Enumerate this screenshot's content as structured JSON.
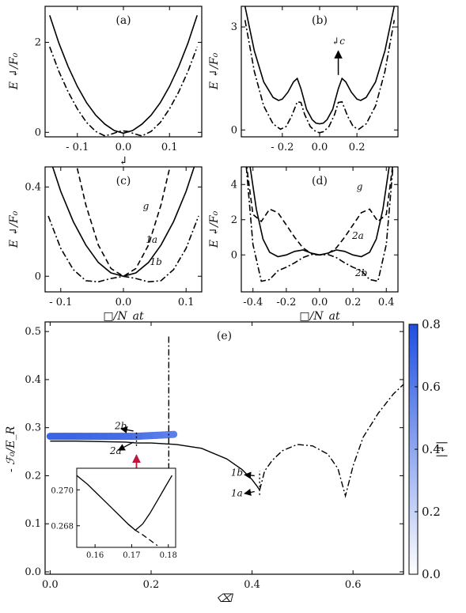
{
  "chart_data": [
    {
      "id": "a",
      "type": "line",
      "panel_label": "(a)",
      "ylabel": "E ↲/F₀",
      "xlabel": "↲",
      "xlim": [
        -0.17,
        0.17
      ],
      "ylim": [
        -0.1,
        2.8
      ],
      "xticks": [
        -0.1,
        0.0,
        0.1
      ],
      "xtick_labels": [
        "- 0.1",
        "0.0",
        "0.1"
      ],
      "yticks": [
        0,
        2
      ],
      "ytick_labels": [
        "0",
        "2"
      ],
      "series": [
        {
          "style": "solid",
          "x": [
            -0.16,
            -0.14,
            -0.12,
            -0.1,
            -0.08,
            -0.06,
            -0.04,
            -0.02,
            0,
            0.02,
            0.04,
            0.06,
            0.08,
            0.1,
            0.12,
            0.14,
            0.16
          ],
          "y": [
            2.6,
            1.98,
            1.46,
            1.02,
            0.66,
            0.38,
            0.18,
            0.04,
            -0.02,
            0.04,
            0.18,
            0.38,
            0.66,
            1.02,
            1.46,
            1.98,
            2.6
          ]
        },
        {
          "style": "dashdot",
          "x": [
            -0.16,
            -0.14,
            -0.12,
            -0.1,
            -0.08,
            -0.06,
            -0.04,
            -0.02,
            -0.01,
            0,
            0.01,
            0.02,
            0.04,
            0.06,
            0.08,
            0.1,
            0.12,
            0.14,
            0.16
          ],
          "y": [
            1.9,
            1.35,
            0.9,
            0.52,
            0.22,
            0.02,
            -0.08,
            -0.02,
            0.02,
            0.03,
            0.02,
            -0.02,
            -0.08,
            0.02,
            0.22,
            0.52,
            0.9,
            1.35,
            1.9
          ]
        }
      ]
    },
    {
      "id": "b",
      "type": "line",
      "panel_label": "(b)",
      "ylabel": "E ↲/F₀",
      "xlabel": "",
      "xlim": [
        -0.42,
        0.42
      ],
      "ylim": [
        -0.2,
        3.6
      ],
      "xticks": [
        -0.2,
        0.0,
        0.2
      ],
      "xtick_labels": [
        "- 0.2",
        "0.0",
        "0.2"
      ],
      "yticks": [
        0,
        3
      ],
      "ytick_labels": [
        "0",
        "3"
      ],
      "annotations": [
        {
          "text": "↲c",
          "x": 0.1,
          "y": 2.5
        }
      ],
      "series": [
        {
          "style": "solid",
          "x": [
            -0.4,
            -0.35,
            -0.3,
            -0.25,
            -0.22,
            -0.2,
            -0.17,
            -0.14,
            -0.12,
            -0.1,
            -0.07,
            -0.04,
            -0.02,
            0,
            0.02,
            0.04,
            0.07,
            0.1,
            0.12,
            0.14,
            0.17,
            0.2,
            0.22,
            0.25,
            0.3,
            0.35,
            0.4
          ],
          "y": [
            3.6,
            2.3,
            1.4,
            0.95,
            0.86,
            0.9,
            1.1,
            1.4,
            1.5,
            1.2,
            0.6,
            0.3,
            0.2,
            0.18,
            0.2,
            0.3,
            0.6,
            1.2,
            1.5,
            1.4,
            1.1,
            0.9,
            0.86,
            0.95,
            1.4,
            2.3,
            3.6
          ]
        },
        {
          "style": "dashdot",
          "x": [
            -0.4,
            -0.35,
            -0.3,
            -0.25,
            -0.21,
            -0.18,
            -0.15,
            -0.12,
            -0.1,
            -0.08,
            -0.05,
            -0.02,
            0,
            0.02,
            0.05,
            0.08,
            0.1,
            0.12,
            0.15,
            0.18,
            0.21,
            0.25,
            0.3,
            0.35,
            0.4
          ],
          "y": [
            3.2,
            1.7,
            0.7,
            0.18,
            0.02,
            0.1,
            0.4,
            0.82,
            0.8,
            0.45,
            0.1,
            -0.05,
            -0.08,
            -0.05,
            0.1,
            0.45,
            0.8,
            0.82,
            0.4,
            0.1,
            0.02,
            0.18,
            0.7,
            1.7,
            3.2
          ]
        }
      ]
    },
    {
      "id": "c",
      "type": "line",
      "panel_label": "(c)",
      "ylabel": "E ↲/F₀",
      "xlabel": "□/N_at",
      "xlim": [
        -0.125,
        0.125
      ],
      "ylim": [
        -0.07,
        0.49
      ],
      "xticks": [
        -0.1,
        0.0,
        0.1
      ],
      "xtick_labels": [
        "- 0.1",
        "0.0",
        "0.1"
      ],
      "yticks": [
        0,
        0.4
      ],
      "ytick_labels": [
        "0",
        "0.4"
      ],
      "annotations": [
        {
          "text": "g",
          "x": 0.036,
          "y": 0.3
        },
        {
          "text": "1a",
          "x": 0.045,
          "y": 0.15
        },
        {
          "text": "1b",
          "x": 0.052,
          "y": 0.05
        }
      ],
      "series": [
        {
          "name": "g",
          "style": "dashed",
          "x": [
            -0.08,
            -0.06,
            -0.04,
            -0.02,
            0,
            0.02,
            0.04,
            0.06,
            0.08
          ],
          "y": [
            0.56,
            0.32,
            0.14,
            0.035,
            0.0,
            0.035,
            0.14,
            0.32,
            0.56
          ]
        },
        {
          "name": "1a",
          "style": "solid",
          "x": [
            -0.12,
            -0.1,
            -0.08,
            -0.06,
            -0.04,
            -0.02,
            0,
            0.02,
            0.04,
            0.06,
            0.08,
            0.1,
            0.12
          ],
          "y": [
            0.55,
            0.38,
            0.245,
            0.14,
            0.062,
            0.015,
            0.0,
            0.015,
            0.062,
            0.14,
            0.245,
            0.38,
            0.55
          ]
        },
        {
          "name": "1b",
          "style": "dashdot",
          "x": [
            -0.12,
            -0.1,
            -0.08,
            -0.06,
            -0.04,
            -0.02,
            0,
            0.02,
            0.04,
            0.06,
            0.08,
            0.1,
            0.12
          ],
          "y": [
            0.27,
            0.125,
            0.03,
            -0.02,
            -0.025,
            -0.01,
            0.0,
            -0.01,
            -0.025,
            -0.02,
            0.03,
            0.125,
            0.27
          ]
        }
      ]
    },
    {
      "id": "d",
      "type": "line",
      "panel_label": "(d)",
      "ylabel": "E ↲/F₀",
      "xlabel": "□/N_at",
      "xlim": [
        -0.47,
        0.47
      ],
      "ylim": [
        -2.1,
        5.0
      ],
      "xticks": [
        -0.4,
        -0.2,
        0.0,
        0.2,
        0.4
      ],
      "xtick_labels": [
        "-0.4",
        "-0.2",
        "0.0",
        "0.2",
        "0.4"
      ],
      "yticks": [
        0,
        2,
        4
      ],
      "ytick_labels": [
        "0",
        "2",
        "4"
      ],
      "annotations": [
        {
          "text": "g",
          "x": 0.24,
          "y": 3.7
        },
        {
          "text": "2a",
          "x": 0.23,
          "y": 0.9
        },
        {
          "text": "2b",
          "x": 0.25,
          "y": -1.2
        }
      ],
      "series": [
        {
          "name": "g",
          "style": "dashed",
          "x": [
            -0.44,
            -0.4,
            -0.35,
            -0.3,
            -0.25,
            -0.2,
            -0.15,
            -0.1,
            -0.05,
            0,
            0.05,
            0.1,
            0.15,
            0.2,
            0.25,
            0.3,
            0.35,
            0.4,
            0.44
          ],
          "y": [
            5.2,
            2.3,
            1.9,
            2.6,
            2.4,
            1.7,
            1.0,
            0.4,
            0.08,
            0.0,
            0.08,
            0.4,
            1.0,
            1.7,
            2.4,
            2.6,
            1.9,
            2.3,
            5.2
          ]
        },
        {
          "name": "2a",
          "style": "solid",
          "x": [
            -0.42,
            -0.38,
            -0.34,
            -0.3,
            -0.25,
            -0.2,
            -0.15,
            -0.1,
            -0.05,
            0,
            0.05,
            0.1,
            0.15,
            0.2,
            0.25,
            0.3,
            0.34,
            0.38,
            0.42
          ],
          "y": [
            5.2,
            2.6,
            0.9,
            0.15,
            -0.1,
            0.0,
            0.2,
            0.28,
            0.1,
            0.0,
            0.1,
            0.28,
            0.2,
            0.0,
            -0.1,
            0.15,
            0.9,
            2.6,
            5.2
          ]
        },
        {
          "name": "2b",
          "style": "dashdot",
          "x": [
            -0.44,
            -0.4,
            -0.35,
            -0.3,
            -0.25,
            -0.2,
            -0.15,
            -0.1,
            -0.05,
            0,
            0.05,
            0.1,
            0.15,
            0.2,
            0.25,
            0.3,
            0.35,
            0.4,
            0.44
          ],
          "y": [
            5.0,
            0.6,
            -1.5,
            -1.4,
            -0.9,
            -0.7,
            -0.45,
            -0.15,
            0.02,
            0.0,
            0.02,
            -0.15,
            -0.45,
            -0.7,
            -0.9,
            -1.4,
            -1.5,
            0.6,
            5.0
          ]
        }
      ]
    },
    {
      "id": "e",
      "type": "line",
      "panel_label": "(e)",
      "ylabel": "- ℱ₀/E_R",
      "xlabel": "⌫",
      "xlim": [
        -0.01,
        0.7
      ],
      "ylim": [
        -0.005,
        0.52
      ],
      "xticks": [
        0.0,
        0.2,
        0.4,
        0.6
      ],
      "xtick_labels": [
        "0.0",
        "0.2",
        "0.4",
        "0.6"
      ],
      "yticks": [
        0.0,
        0.1,
        0.2,
        0.3,
        0.4,
        0.5
      ],
      "ytick_labels": [
        "0.0",
        "0.1",
        "0.2",
        "0.3",
        "0.4",
        "0.5"
      ],
      "colorbar": {
        "label": "|↲|",
        "min": 0.0,
        "max": 0.8,
        "ticks": [
          "0.0",
          "0.2",
          "0.4",
          "0.6",
          "0.8"
        ],
        "color_low": "#ffffff",
        "color_high": "#1f4fe0"
      },
      "annotations": [
        {
          "text": "2b",
          "x": 0.14,
          "y": 0.297
        },
        {
          "text": "2a",
          "x": 0.13,
          "y": 0.245
        },
        {
          "text": "1b",
          "x": 0.37,
          "y": 0.2
        },
        {
          "text": "1a",
          "x": 0.37,
          "y": 0.157
        }
      ],
      "vertical_lines": [
        {
          "x": 0.235,
          "style": "dashdot",
          "y0": 0.213,
          "y1": 0.49
        },
        {
          "x": 0.171,
          "style": "dotted",
          "y0": 0.262,
          "y1": 0.295
        },
        {
          "x": 0.415,
          "style": "dotted",
          "y0": 0.16,
          "y1": 0.21
        }
      ],
      "series": [
        {
          "name": "2b",
          "style": "thick-colored",
          "x": [
            0.0,
            0.03,
            0.06,
            0.09,
            0.12,
            0.15,
            0.17,
            0.19,
            0.21,
            0.23,
            0.245
          ],
          "y": [
            0.282,
            0.282,
            0.282,
            0.282,
            0.282,
            0.282,
            0.282,
            0.283,
            0.284,
            0.285,
            0.286
          ],
          "abs_value": [
            0.7,
            0.7,
            0.69,
            0.68,
            0.67,
            0.66,
            0.64,
            0.62,
            0.6,
            0.58,
            0.56
          ]
        },
        {
          "name": "2a",
          "style": "solid",
          "x": [
            0.0,
            0.05,
            0.1,
            0.15,
            0.171,
            0.2,
            0.25,
            0.3,
            0.35,
            0.38,
            0.4,
            0.41,
            0.415
          ],
          "y": [
            0.272,
            0.272,
            0.271,
            0.27,
            0.268,
            0.268,
            0.265,
            0.257,
            0.235,
            0.213,
            0.192,
            0.178,
            0.17
          ]
        },
        {
          "name": "1a-1b",
          "style": "dashdot",
          "x": [
            0.415,
            0.425,
            0.44,
            0.46,
            0.49,
            0.52,
            0.55,
            0.57,
            0.585,
            0.6,
            0.62,
            0.65,
            0.68,
            0.7
          ],
          "y": [
            0.17,
            0.21,
            0.232,
            0.252,
            0.265,
            0.262,
            0.245,
            0.215,
            0.158,
            0.22,
            0.28,
            0.33,
            0.37,
            0.39
          ]
        }
      ],
      "inset": {
        "xlim": [
          0.155,
          0.182
        ],
        "ylim": [
          0.2668,
          0.2712
        ],
        "xticks": [
          0.16,
          0.17,
          0.18
        ],
        "xtick_labels": [
          "0.16",
          "0.17",
          "0.18"
        ],
        "yticks": [
          0.268,
          0.27
        ],
        "ytick_labels": [
          "0.268",
          "0.270"
        ],
        "series": [
          {
            "style": "solid",
            "x": [
              0.155,
              0.158,
              0.161,
              0.164,
              0.167,
              0.169,
              0.171,
              0.173,
              0.175,
              0.177,
              0.179,
              0.181
            ],
            "y": [
              0.2708,
              0.2703,
              0.2697,
              0.2691,
              0.2685,
              0.2681,
              0.26775,
              0.2681,
              0.2687,
              0.2694,
              0.2701,
              0.2708
            ]
          },
          {
            "style": "dashed",
            "x": [
              0.169,
              0.171,
              0.173,
              0.175,
              0.177
            ],
            "y": [
              0.2681,
              0.26775,
              0.2675,
              0.2672,
              0.2669
            ]
          }
        ]
      }
    }
  ]
}
